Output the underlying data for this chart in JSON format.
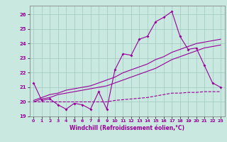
{
  "xlabel": "Windchill (Refroidissement éolien,°C)",
  "xlim": [
    -0.5,
    23.5
  ],
  "ylim": [
    19,
    26.6
  ],
  "yticks": [
    19,
    20,
    21,
    22,
    23,
    24,
    25,
    26
  ],
  "xticks": [
    0,
    1,
    2,
    3,
    4,
    5,
    6,
    7,
    8,
    9,
    10,
    11,
    12,
    13,
    14,
    15,
    16,
    17,
    18,
    19,
    20,
    21,
    22,
    23
  ],
  "background_color": "#c8e8e0",
  "grid_color": "#a0c8c0",
  "line_color": "#990099",
  "line1_y": [
    21.3,
    20.1,
    20.2,
    19.8,
    19.5,
    19.9,
    19.8,
    19.5,
    20.7,
    19.5,
    22.2,
    23.3,
    23.2,
    24.3,
    24.5,
    25.5,
    25.8,
    26.2,
    24.5,
    23.6,
    23.7,
    22.5,
    21.3,
    21.0
  ],
  "line2_y": [
    20.0,
    20.0,
    20.0,
    20.0,
    20.0,
    20.0,
    20.0,
    20.0,
    20.0,
    20.0,
    20.1,
    20.15,
    20.2,
    20.25,
    20.3,
    20.4,
    20.5,
    20.6,
    20.6,
    20.65,
    20.65,
    20.7,
    20.7,
    20.7
  ],
  "line3_y": [
    20.0,
    20.2,
    20.3,
    20.5,
    20.6,
    20.7,
    20.8,
    20.9,
    21.0,
    21.1,
    21.3,
    21.5,
    21.7,
    21.9,
    22.1,
    22.3,
    22.6,
    22.9,
    23.1,
    23.3,
    23.5,
    23.7,
    23.8,
    23.9
  ],
  "line4_y": [
    20.1,
    20.3,
    20.5,
    20.6,
    20.8,
    20.9,
    21.0,
    21.1,
    21.3,
    21.5,
    21.7,
    22.0,
    22.2,
    22.4,
    22.6,
    22.9,
    23.1,
    23.4,
    23.6,
    23.8,
    24.0,
    24.1,
    24.2,
    24.3
  ]
}
